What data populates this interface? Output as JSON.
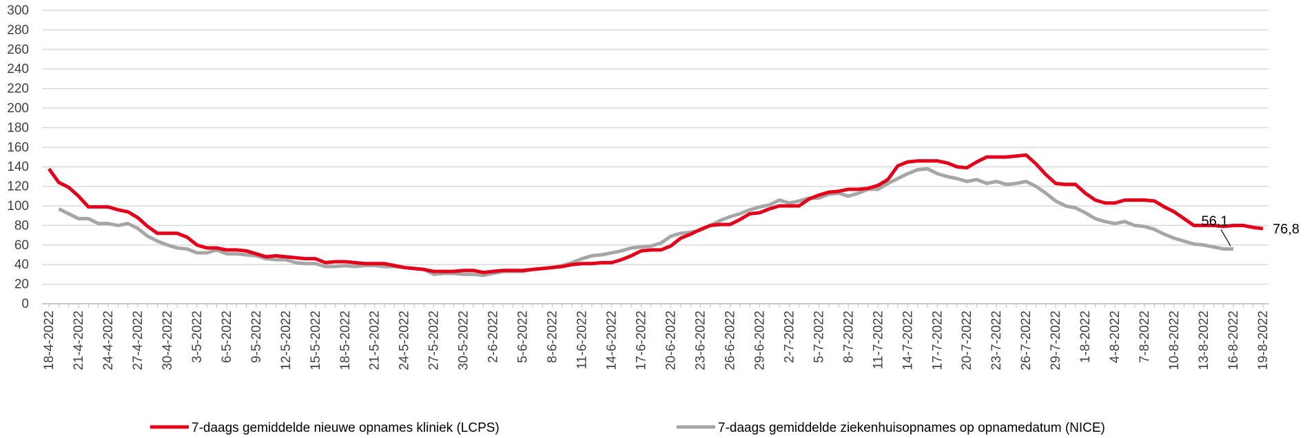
{
  "chart_data": {
    "type": "line",
    "categories": [
      "18-4-2022",
      null,
      null,
      "21-4-2022",
      null,
      null,
      "24-4-2022",
      null,
      null,
      "27-4-2022",
      null,
      null,
      "30-4-2022",
      null,
      null,
      "3-5-2022",
      null,
      null,
      "6-5-2022",
      null,
      null,
      "9-5-2022",
      null,
      null,
      "12-5-2022",
      null,
      null,
      "15-5-2022",
      null,
      null,
      "18-5-2022",
      null,
      null,
      "21-5-2022",
      null,
      null,
      "24-5-2022",
      null,
      null,
      "27-5-2022",
      null,
      null,
      "30-5-2022",
      null,
      null,
      "2-6-2022",
      null,
      null,
      "5-6-2022",
      null,
      null,
      "8-6-2022",
      null,
      null,
      "11-6-2022",
      null,
      null,
      "14-6-2022",
      null,
      null,
      "17-6-2022",
      null,
      null,
      "20-6-2022",
      null,
      null,
      "23-6-2022",
      null,
      null,
      "26-6-2022",
      null,
      null,
      "29-6-2022",
      null,
      null,
      "2-7-2022",
      null,
      null,
      "5-7-2022",
      null,
      null,
      "8-7-2022",
      null,
      null,
      "11-7-2022",
      null,
      null,
      "14-7-2022",
      null,
      null,
      "17-7-2022",
      null,
      null,
      "20-7-2022",
      null,
      null,
      "23-7-2022",
      null,
      null,
      "26-7-2022",
      null,
      null,
      "29-7-2022",
      null,
      null,
      "1-8-2022",
      null,
      null,
      "4-8-2022",
      null,
      null,
      "7-8-2022",
      null,
      null,
      "10-8-2022",
      null,
      null,
      "13-8-2022",
      null,
      null,
      "16-8-2022",
      null,
      null,
      "19-8-2022"
    ],
    "series": [
      {
        "name": "7-daags gemiddelde nieuwe opnames kliniek (LCPS)",
        "color": "#e2001a",
        "values": [
          138,
          124,
          119,
          110,
          99,
          99,
          99,
          96,
          94,
          88,
          79,
          72,
          72,
          72,
          68,
          60,
          57,
          57,
          55,
          55,
          54,
          51,
          48,
          49,
          48,
          47,
          46,
          46,
          42,
          43,
          43,
          42,
          41,
          41,
          41,
          39,
          37,
          36,
          35,
          33,
          33,
          33,
          34,
          34,
          32,
          33,
          34,
          34,
          34,
          35,
          36,
          37,
          38,
          40,
          41,
          41,
          42,
          42,
          45,
          49,
          54,
          55,
          55,
          59,
          67,
          71,
          76,
          80,
          81,
          81,
          86,
          92,
          93,
          97,
          100,
          100,
          100,
          107,
          111,
          114,
          115,
          117,
          117,
          118,
          121,
          127,
          141,
          145,
          146,
          146,
          146,
          144,
          140,
          139,
          145,
          150,
          150,
          150,
          151,
          152,
          143,
          132,
          123,
          122,
          122,
          113,
          106,
          103,
          103,
          106,
          106,
          106,
          105,
          99,
          94,
          87,
          80,
          80,
          80,
          79,
          80,
          80,
          78,
          76.8
        ],
        "value_labels": [
          null,
          null,
          null,
          null,
          null,
          null,
          null,
          null,
          null,
          null,
          null,
          null,
          null,
          null,
          null,
          null,
          null,
          null,
          null,
          null,
          null,
          null,
          null,
          null,
          null,
          null,
          null,
          null,
          null,
          null,
          null,
          null,
          null,
          null,
          null,
          null,
          null,
          null,
          null,
          null,
          null,
          null,
          null,
          null,
          null,
          null,
          null,
          null,
          null,
          null,
          null,
          null,
          null,
          null,
          null,
          null,
          null,
          null,
          null,
          null,
          null,
          null,
          null,
          null,
          null,
          null,
          null,
          null,
          null,
          null,
          null,
          null,
          null,
          null,
          null,
          null,
          null,
          null,
          null,
          null,
          null,
          null,
          null,
          null,
          null,
          null,
          null,
          null,
          null,
          null,
          null,
          null,
          null,
          null,
          null,
          null,
          null,
          null,
          null,
          null,
          null,
          null,
          null,
          null,
          null,
          null,
          null,
          null,
          null,
          null,
          null,
          null,
          null,
          null,
          null,
          null,
          null,
          null,
          null,
          null,
          null,
          null,
          null,
          "76,8"
        ]
      },
      {
        "name": "7-daags gemiddelde ziekenhuisopnames op opnamedatum (NICE)",
        "color": "#a6a6a6",
        "values": [
          null,
          97,
          92,
          87,
          87,
          82,
          82,
          80,
          82,
          77,
          69,
          64,
          60,
          57,
          56,
          52,
          52,
          55,
          51,
          51,
          50,
          49,
          46,
          45,
          45,
          42,
          41,
          41,
          38,
          38,
          39,
          38,
          39,
          39,
          38,
          38,
          37,
          36,
          35,
          30,
          31,
          31,
          30,
          30,
          29,
          31,
          33,
          33,
          33,
          35,
          36,
          37,
          39,
          42,
          46,
          49,
          50,
          52,
          54,
          57,
          58,
          59,
          62,
          69,
          72,
          73,
          75,
          80,
          85,
          89,
          92,
          96,
          99,
          101,
          106,
          103,
          105,
          108,
          108,
          112,
          113,
          110,
          113,
          117,
          117,
          123,
          128,
          133,
          137,
          138,
          133,
          130,
          128,
          125,
          127,
          123,
          125,
          122,
          123,
          125,
          120,
          113,
          105,
          100,
          98,
          93,
          87,
          84,
          82,
          84,
          80,
          79,
          76,
          71,
          67,
          64,
          61,
          60,
          58,
          56,
          56.1,
          null,
          null,
          null
        ],
        "value_labels": [
          null,
          null,
          null,
          null,
          null,
          null,
          null,
          null,
          null,
          null,
          null,
          null,
          null,
          null,
          null,
          null,
          null,
          null,
          null,
          null,
          null,
          null,
          null,
          null,
          null,
          null,
          null,
          null,
          null,
          null,
          null,
          null,
          null,
          null,
          null,
          null,
          null,
          null,
          null,
          null,
          null,
          null,
          null,
          null,
          null,
          null,
          null,
          null,
          null,
          null,
          null,
          null,
          null,
          null,
          null,
          null,
          null,
          null,
          null,
          null,
          null,
          null,
          null,
          null,
          null,
          null,
          null,
          null,
          null,
          null,
          null,
          null,
          null,
          null,
          null,
          null,
          null,
          null,
          null,
          null,
          null,
          null,
          null,
          null,
          null,
          null,
          null,
          null,
          null,
          null,
          null,
          null,
          null,
          null,
          null,
          null,
          null,
          null,
          null,
          null,
          null,
          null,
          null,
          null,
          null,
          null,
          null,
          null,
          null,
          null,
          null,
          null,
          null,
          null,
          null,
          null,
          null,
          null,
          null,
          null,
          "56,1",
          null,
          null,
          null
        ]
      }
    ],
    "ylim": [
      0,
      300
    ],
    "yticks": [
      0,
      20,
      40,
      60,
      80,
      100,
      120,
      140,
      160,
      180,
      200,
      220,
      240,
      260,
      280,
      300
    ],
    "grid": true,
    "legend": "bottom"
  }
}
